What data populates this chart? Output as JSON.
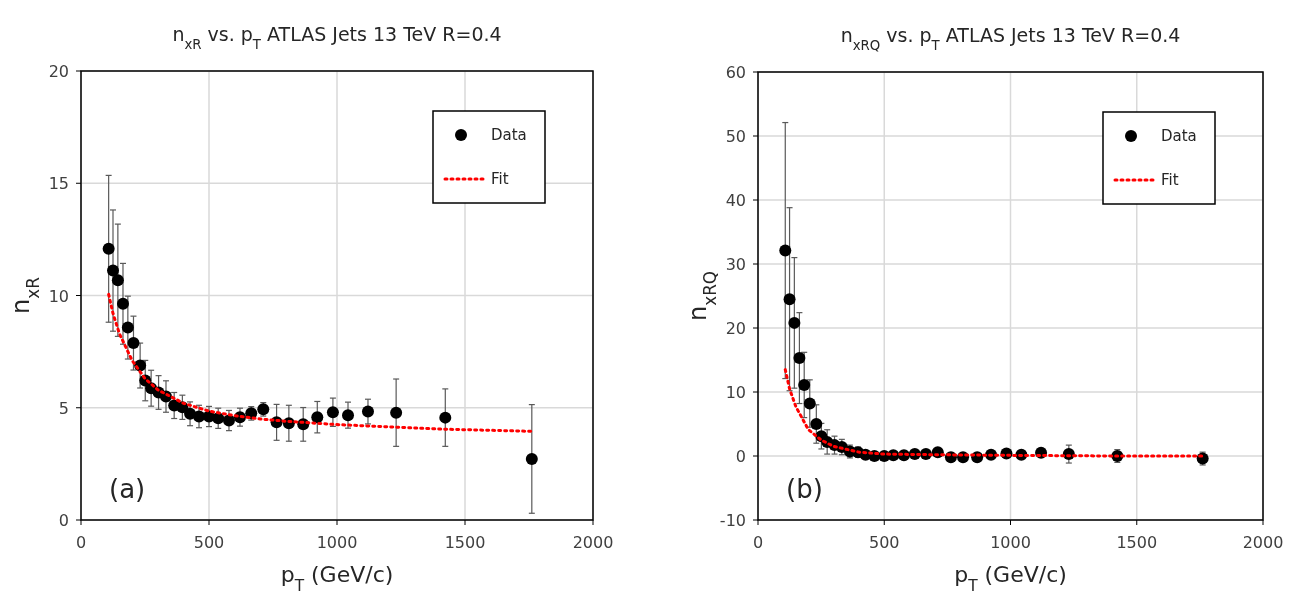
{
  "chart_data": [
    {
      "type": "scatter",
      "title": "n$_{xR}$ vs. p$_{T}$ ATLAS Jets 13 TeV R=0.4",
      "xlabel": "p$_{T}$ (GeV/c)",
      "ylabel": "n$_{xR}$",
      "annotations": [
        "(a)"
      ],
      "xlim": [
        0,
        2000
      ],
      "xticks": [
        0,
        500,
        1000,
        1500,
        2000
      ],
      "ylim": [
        0,
        20
      ],
      "yticks": [
        0,
        5,
        10,
        15,
        20
      ],
      "grid": true,
      "legend": "top right",
      "marker": "circle",
      "series": [
        {
          "name": "Data",
          "color": "#000000",
          "x": [
            108,
            125,
            144,
            164,
            183,
            205,
            231,
            251,
            274,
            303,
            332,
            364,
            396,
            426,
            461,
            500,
            536,
            578,
            621,
            665,
            712,
            764,
            812,
            868,
            923,
            984,
            1043,
            1121,
            1231,
            1423,
            1761
          ],
          "values": [
            12.08,
            11.11,
            10.68,
            9.63,
            8.57,
            7.88,
            6.88,
            6.21,
            5.87,
            5.68,
            5.5,
            5.1,
            5.02,
            4.73,
            4.61,
            4.61,
            4.53,
            4.43,
            4.58,
            4.75,
            4.93,
            4.35,
            4.31,
            4.26,
            4.58,
            4.8,
            4.67,
            4.83,
            4.78,
            4.56,
            2.72
          ],
          "errors": [
            3.27,
            2.7,
            2.5,
            1.8,
            1.4,
            1.2,
            1.0,
            0.9,
            0.8,
            0.75,
            0.7,
            0.58,
            0.54,
            0.53,
            0.5,
            0.45,
            0.45,
            0.45,
            0.4,
            0.3,
            0.3,
            0.8,
            0.8,
            0.75,
            0.7,
            0.63,
            0.58,
            0.55,
            1.5,
            1.28,
            2.42
          ]
        },
        {
          "name": "Fit",
          "type": "line",
          "line_style": "dotted",
          "marker": "none",
          "color": "#ff0000",
          "x": [
            108,
            125,
            150,
            200,
            250,
            300,
            400,
            500,
            600,
            700,
            800,
            1000,
            1200,
            1400,
            1761
          ],
          "values": [
            10.05,
            9.2,
            8.3,
            7.1,
            6.3,
            5.8,
            5.2,
            4.85,
            4.65,
            4.5,
            4.4,
            4.25,
            4.15,
            4.05,
            3.95
          ]
        }
      ]
    },
    {
      "type": "scatter",
      "title": "n$_{xRQ}$ vs. p$_{T}$ ATLAS Jets 13 TeV R=0.4",
      "xlabel": "p$_{T}$ (GeV/c)",
      "ylabel": "n$_{xRQ}$",
      "annotations": [
        "(b)"
      ],
      "xlim": [
        0,
        2000
      ],
      "xticks": [
        0,
        500,
        1000,
        1500,
        2000
      ],
      "ylim": [
        -10,
        60
      ],
      "yticks": [
        -10,
        0,
        10,
        20,
        30,
        40,
        50,
        60
      ],
      "grid": true,
      "legend": "top right",
      "marker": "circle",
      "series": [
        {
          "name": "Data",
          "color": "#000000",
          "x": [
            108,
            125,
            144,
            164,
            183,
            205,
            231,
            251,
            274,
            303,
            332,
            364,
            396,
            426,
            461,
            500,
            536,
            578,
            621,
            665,
            712,
            764,
            812,
            868,
            923,
            984,
            1043,
            1121,
            1231,
            1423,
            1761
          ],
          "values": [
            32.1,
            24.5,
            20.8,
            15.3,
            11.1,
            8.2,
            5.0,
            3.1,
            2.2,
            1.7,
            1.4,
            0.7,
            0.6,
            0.2,
            0,
            0,
            0.1,
            0.1,
            0.3,
            0.3,
            0.6,
            -0.2,
            -0.2,
            -0.2,
            0.2,
            0.4,
            0.2,
            0.5,
            0.3,
            0,
            -0.4
          ],
          "errors": [
            20,
            14.3,
            10.2,
            7.1,
            5.1,
            3.7,
            3,
            2,
            1.9,
            1.4,
            1.2,
            1,
            0.8,
            0.4,
            0.4,
            0.4,
            0.4,
            0.4,
            0.4,
            0.4,
            0.4,
            0.4,
            0.4,
            0.4,
            0.4,
            0.4,
            0.4,
            0.4,
            1.4,
            1.0,
            1.0
          ]
        },
        {
          "name": "Fit",
          "type": "line",
          "line_style": "dotted",
          "marker": "none",
          "color": "#ff0000",
          "x": [
            108,
            125,
            150,
            200,
            250,
            300,
            400,
            500,
            700,
            1000,
            1400,
            1761
          ],
          "values": [
            13.5,
            10.5,
            7.7,
            4.1,
            2.5,
            1.5,
            0.6,
            0.3,
            0.2,
            0.1,
            0,
            0
          ]
        }
      ]
    }
  ]
}
